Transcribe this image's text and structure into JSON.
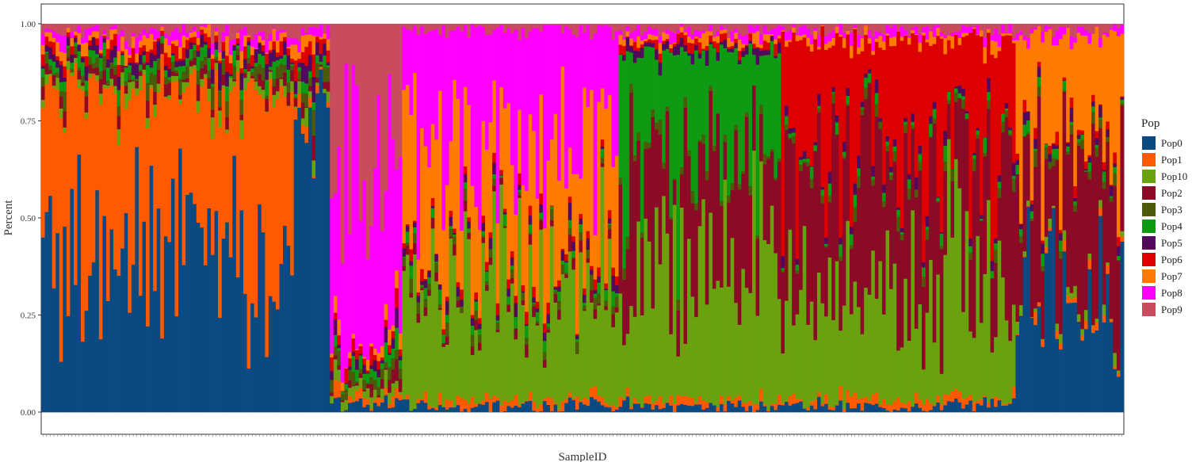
{
  "chart_data": {
    "type": "bar",
    "stacked": true,
    "xlabel": "SampleID",
    "ylabel": "Percent",
    "ylim": [
      0,
      1
    ],
    "yticks": [
      "0.00",
      "0.25",
      "0.50",
      "0.75",
      "1.00"
    ],
    "ytick_values": [
      0,
      0.25,
      0.5,
      0.75,
      1
    ],
    "legend": {
      "title": "Pop",
      "placement": "right"
    },
    "series": [
      {
        "name": "Pop0",
        "color": "#0b4a80"
      },
      {
        "name": "Pop1",
        "color": "#ff5a00"
      },
      {
        "name": "Pop10",
        "color": "#6aa10f"
      },
      {
        "name": "Pop2",
        "color": "#8b0a26"
      },
      {
        "name": "Pop3",
        "color": "#4c5a0a"
      },
      {
        "name": "Pop4",
        "color": "#0e9a12"
      },
      {
        "name": "Pop5",
        "color": "#50095c"
      },
      {
        "name": "Pop6",
        "color": "#dc0000"
      },
      {
        "name": "Pop7",
        "color": "#ff7a00"
      },
      {
        "name": "Pop8",
        "color": "#ff00ff"
      },
      {
        "name": "Pop9",
        "color": "#c84b5e"
      }
    ],
    "sample_count": 300,
    "dominant_by_sample_block": [
      {
        "samples": "1-70",
        "dominant": [
          "Pop0",
          "Pop1"
        ]
      },
      {
        "samples": "71-80",
        "dominant": [
          "Pop0"
        ]
      },
      {
        "samples": "81-100",
        "dominant": [
          "Pop9",
          "Pop8"
        ]
      },
      {
        "samples": "101-160",
        "dominant": [
          "Pop10",
          "Pop8",
          "Pop7"
        ]
      },
      {
        "samples": "161-205",
        "dominant": [
          "Pop10",
          "Pop4",
          "Pop2"
        ]
      },
      {
        "samples": "206-270",
        "dominant": [
          "Pop6",
          "Pop10",
          "Pop2"
        ]
      },
      {
        "samples": "271-300",
        "dominant": [
          "Pop0",
          "Pop2",
          "Pop7"
        ]
      }
    ]
  }
}
